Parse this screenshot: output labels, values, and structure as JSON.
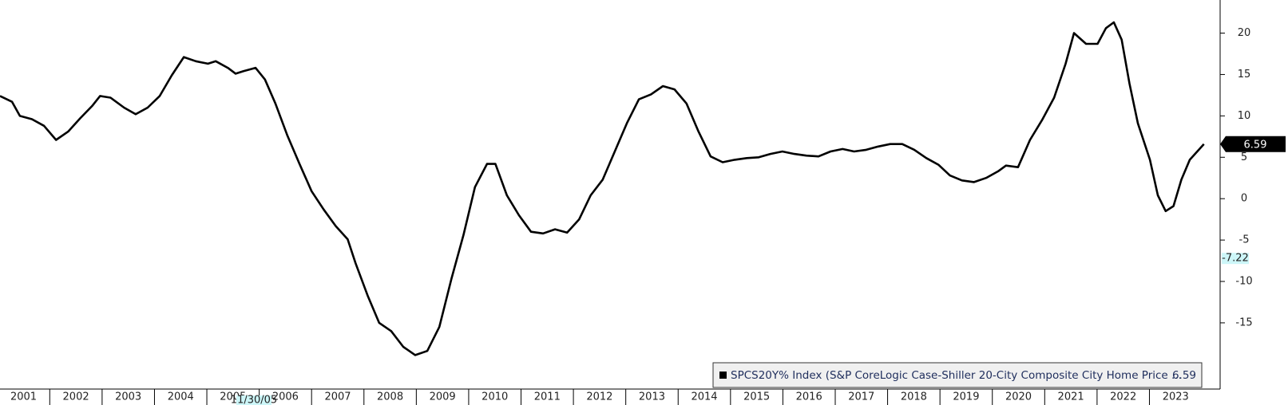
{
  "chart_data": {
    "type": "line",
    "series": [
      {
        "name": "SPCS20Y% Index (S&P CoreLogic Case-Shiller 20-City Composite City Home Price ...",
        "color": "#000000",
        "x": [
          2001.05,
          2001.28,
          2001.43,
          2001.66,
          2001.89,
          2002.12,
          2002.35,
          2002.58,
          2002.81,
          2002.96,
          2003.16,
          2003.42,
          2003.64,
          2003.87,
          2004.1,
          2004.33,
          2004.56,
          2004.79,
          2005.02,
          2005.17,
          2005.4,
          2005.55,
          2005.7,
          2005.93,
          2006.11,
          2006.31,
          2006.54,
          2006.77,
          2007.0,
          2007.23,
          2007.46,
          2007.69,
          2007.84,
          2008.07,
          2008.29,
          2008.52,
          2008.75,
          2008.98,
          2009.21,
          2009.44,
          2009.67,
          2009.9,
          2010.12,
          2010.35,
          2010.51,
          2010.73,
          2010.96,
          2011.19,
          2011.42,
          2011.65,
          2011.88,
          2012.11,
          2012.33,
          2012.56,
          2012.79,
          2013.02,
          2013.25,
          2013.48,
          2013.71,
          2013.93,
          2014.16,
          2014.39,
          2014.62,
          2014.85,
          2015.08,
          2015.31,
          2015.54,
          2015.76,
          2015.99,
          2016.22,
          2016.45,
          2016.68,
          2016.91,
          2017.14,
          2017.36,
          2017.59,
          2017.82,
          2018.05,
          2018.28,
          2018.51,
          2018.74,
          2018.97,
          2019.19,
          2019.42,
          2019.65,
          2019.88,
          2020.11,
          2020.26,
          2020.49,
          2020.72,
          2020.95,
          2021.18,
          2021.4,
          2021.56,
          2021.79,
          2022.01,
          2022.17,
          2022.32,
          2022.47,
          2022.62,
          2022.78,
          2023.01,
          2023.16,
          2023.31,
          2023.46,
          2023.61,
          2023.77,
          2024.04
        ],
        "values": [
          12.4,
          11.7,
          10.0,
          9.6,
          8.8,
          7.1,
          8.1,
          9.7,
          11.2,
          12.4,
          12.2,
          11.0,
          10.2,
          11.0,
          12.4,
          14.9,
          17.1,
          16.6,
          16.3,
          16.6,
          15.8,
          15.1,
          15.4,
          15.8,
          14.4,
          11.5,
          7.6,
          4.2,
          0.9,
          -1.3,
          -3.3,
          -4.9,
          -7.8,
          -11.7,
          -15.0,
          -16.0,
          -17.9,
          -18.9,
          -18.4,
          -15.5,
          -9.7,
          -4.4,
          1.4,
          4.2,
          4.2,
          0.4,
          -2.0,
          -4.0,
          -4.2,
          -3.7,
          -4.1,
          -2.5,
          0.4,
          2.3,
          5.7,
          9.1,
          12.0,
          12.6,
          13.6,
          13.2,
          11.5,
          8.1,
          5.1,
          4.4,
          4.7,
          4.9,
          5.0,
          5.4,
          5.7,
          5.4,
          5.2,
          5.1,
          5.7,
          6.0,
          5.7,
          5.9,
          6.3,
          6.6,
          6.6,
          5.9,
          4.9,
          4.1,
          2.8,
          2.2,
          2.0,
          2.5,
          3.3,
          4.0,
          3.8,
          7.1,
          9.5,
          12.2,
          16.3,
          20.0,
          18.7,
          18.7,
          20.6,
          21.3,
          19.2,
          13.9,
          9.1,
          4.7,
          0.4,
          -1.5,
          -0.9,
          2.3,
          4.7,
          6.59
        ]
      }
    ],
    "xlim": [
      2001.05,
      2024.35
    ],
    "xticks": [
      2001,
      2002,
      2003,
      2004,
      2005,
      2006,
      2007,
      2008,
      2009,
      2010,
      2011,
      2012,
      2013,
      2014,
      2015,
      2016,
      2017,
      2018,
      2019,
      2020,
      2021,
      2022,
      2023
    ],
    "ylim": [
      -23,
      24
    ],
    "yticks": [
      20,
      15,
      10,
      5,
      0,
      -5,
      -10,
      -15
    ],
    "crosshair": {
      "x": "11/30/05",
      "y": -7.22
    }
  }
}
